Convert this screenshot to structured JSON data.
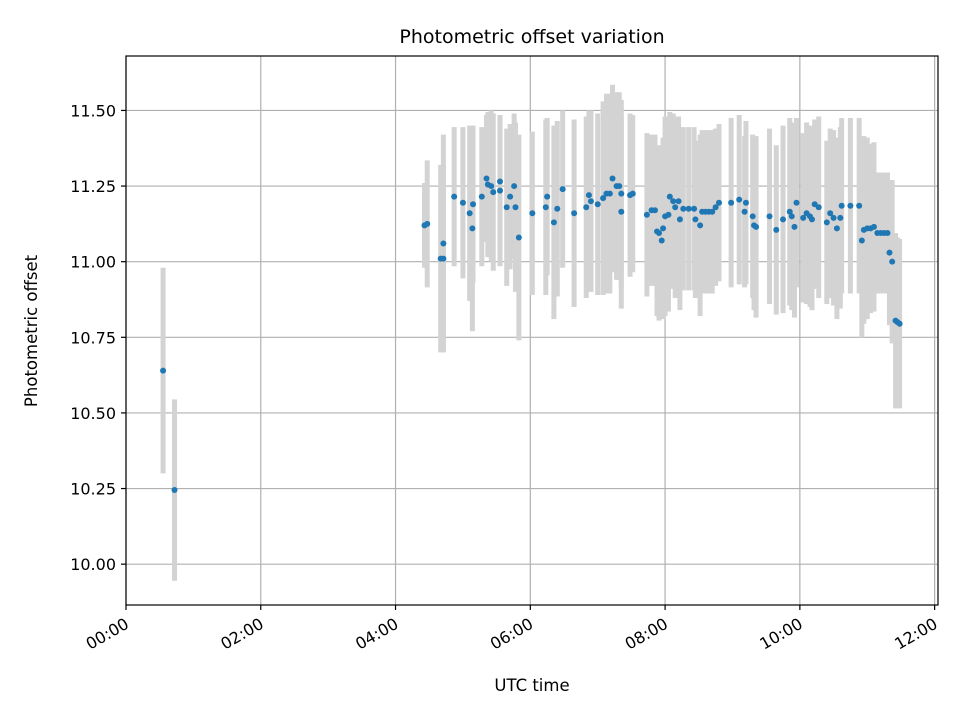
{
  "chart_data": {
    "type": "scatter",
    "title": "Photometric offset variation",
    "xlabel": "UTC time",
    "ylabel": "Photometric offset",
    "x_unit": "hours",
    "xlim": [
      0.0,
      12.05
    ],
    "ylim": [
      9.865,
      11.68
    ],
    "x_ticks": [
      {
        "value": 0,
        "label": "00:00"
      },
      {
        "value": 2,
        "label": "02:00"
      },
      {
        "value": 4,
        "label": "04:00"
      },
      {
        "value": 6,
        "label": "06:00"
      },
      {
        "value": 8,
        "label": "08:00"
      },
      {
        "value": 10,
        "label": "10:00"
      },
      {
        "value": 12,
        "label": "12:00"
      }
    ],
    "y_ticks": [
      {
        "value": 10.0,
        "label": "10.00"
      },
      {
        "value": 10.25,
        "label": "10.25"
      },
      {
        "value": 10.5,
        "label": "10.50"
      },
      {
        "value": 10.75,
        "label": "10.75"
      },
      {
        "value": 11.0,
        "label": "11.00"
      },
      {
        "value": 11.25,
        "label": "11.25"
      },
      {
        "value": 11.5,
        "label": "11.50"
      }
    ],
    "grid": true,
    "colors": {
      "points": "#1f77b4",
      "errorbars": "#d3d3d3",
      "grid": "#b0b0b0"
    },
    "series": [
      {
        "points": [
          [
            0.55,
            10.64,
            0.34
          ],
          [
            0.72,
            10.245,
            0.3
          ],
          [
            4.43,
            11.12,
            0.14
          ],
          [
            4.47,
            11.125,
            0.21
          ],
          [
            4.67,
            11.01,
            0.31
          ],
          [
            4.71,
            11.01,
            0.31
          ],
          [
            4.71,
            11.06,
            0.36
          ],
          [
            4.87,
            11.215,
            0.23
          ],
          [
            5.0,
            11.195,
            0.25
          ],
          [
            5.1,
            11.16,
            0.29
          ],
          [
            5.14,
            11.11,
            0.34
          ],
          [
            5.15,
            11.19,
            0.26
          ],
          [
            5.28,
            11.215,
            0.23
          ],
          [
            5.35,
            11.275,
            0.21
          ],
          [
            5.37,
            11.255,
            0.24
          ],
          [
            5.42,
            11.25,
            0.25
          ],
          [
            5.45,
            11.23,
            0.26
          ],
          [
            5.55,
            11.265,
            0.22
          ],
          [
            5.55,
            11.235,
            0.25
          ],
          [
            5.65,
            11.18,
            0.26
          ],
          [
            5.7,
            11.215,
            0.24
          ],
          [
            5.76,
            11.25,
            0.24
          ],
          [
            5.78,
            11.18,
            0.28
          ],
          [
            5.83,
            11.08,
            0.34
          ],
          [
            6.03,
            11.16,
            0.27
          ],
          [
            6.23,
            11.18,
            0.29
          ],
          [
            6.25,
            11.215,
            0.26
          ],
          [
            6.35,
            11.13,
            0.32
          ],
          [
            6.4,
            11.175,
            0.29
          ],
          [
            6.48,
            11.24,
            0.26
          ],
          [
            6.65,
            11.16,
            0.31
          ],
          [
            6.83,
            11.18,
            0.3
          ],
          [
            6.87,
            11.22,
            0.28
          ],
          [
            6.9,
            11.2,
            0.3
          ],
          [
            7.0,
            11.19,
            0.3
          ],
          [
            7.08,
            11.21,
            0.32
          ],
          [
            7.13,
            11.225,
            0.33
          ],
          [
            7.18,
            11.225,
            0.33
          ],
          [
            7.22,
            11.275,
            0.31
          ],
          [
            7.28,
            11.25,
            0.31
          ],
          [
            7.32,
            11.25,
            0.31
          ],
          [
            7.35,
            11.225,
            0.31
          ],
          [
            7.35,
            11.165,
            0.32
          ],
          [
            7.48,
            11.22,
            0.27
          ],
          [
            7.52,
            11.225,
            0.26
          ],
          [
            7.73,
            11.155,
            0.27
          ],
          [
            7.8,
            11.17,
            0.25
          ],
          [
            7.85,
            11.17,
            0.25
          ],
          [
            7.88,
            11.1,
            0.28
          ],
          [
            7.91,
            11.095,
            0.29
          ],
          [
            7.95,
            11.07,
            0.25
          ],
          [
            7.97,
            11.11,
            0.3
          ],
          [
            8.0,
            11.15,
            0.33
          ],
          [
            8.05,
            11.155,
            0.32
          ],
          [
            8.07,
            11.215,
            0.28
          ],
          [
            8.12,
            11.2,
            0.29
          ],
          [
            8.15,
            11.18,
            0.3
          ],
          [
            8.2,
            11.2,
            0.28
          ],
          [
            8.22,
            11.14,
            0.3
          ],
          [
            8.27,
            11.175,
            0.27
          ],
          [
            8.35,
            11.175,
            0.27
          ],
          [
            8.43,
            11.175,
            0.27
          ],
          [
            8.45,
            11.14,
            0.26
          ],
          [
            8.52,
            11.12,
            0.3
          ],
          [
            8.55,
            11.165,
            0.27
          ],
          [
            8.6,
            11.165,
            0.27
          ],
          [
            8.65,
            11.165,
            0.27
          ],
          [
            8.7,
            11.165,
            0.27
          ],
          [
            8.75,
            11.18,
            0.26
          ],
          [
            8.8,
            11.195,
            0.26
          ],
          [
            8.98,
            11.195,
            0.28
          ],
          [
            9.1,
            11.205,
            0.28
          ],
          [
            9.18,
            11.165,
            0.25
          ],
          [
            9.2,
            11.195,
            0.27
          ],
          [
            9.3,
            11.15,
            0.27
          ],
          [
            9.32,
            11.12,
            0.28
          ],
          [
            9.35,
            11.115,
            0.3
          ],
          [
            9.55,
            11.15,
            0.29
          ],
          [
            9.65,
            11.105,
            0.28
          ],
          [
            9.75,
            11.14,
            0.31
          ],
          [
            9.85,
            11.165,
            0.31
          ],
          [
            9.88,
            11.15,
            0.31
          ],
          [
            9.92,
            11.115,
            0.3
          ],
          [
            9.95,
            11.195,
            0.28
          ],
          [
            10.05,
            11.145,
            0.28
          ],
          [
            10.1,
            11.16,
            0.3
          ],
          [
            10.15,
            11.15,
            0.3
          ],
          [
            10.18,
            11.14,
            0.3
          ],
          [
            10.22,
            11.19,
            0.28
          ],
          [
            10.28,
            11.18,
            0.3
          ],
          [
            10.4,
            11.13,
            0.27
          ],
          [
            10.45,
            11.16,
            0.28
          ],
          [
            10.5,
            11.145,
            0.29
          ],
          [
            10.55,
            11.11,
            0.3
          ],
          [
            10.6,
            11.145,
            0.3
          ],
          [
            10.62,
            11.185,
            0.29
          ],
          [
            10.75,
            11.185,
            0.29
          ],
          [
            10.88,
            11.185,
            0.29
          ],
          [
            10.92,
            11.07,
            0.32
          ],
          [
            10.95,
            11.105,
            0.31
          ],
          [
            11.0,
            11.11,
            0.3
          ],
          [
            11.05,
            11.11,
            0.28
          ],
          [
            11.1,
            11.115,
            0.28
          ],
          [
            11.15,
            11.095,
            0.2
          ],
          [
            11.2,
            11.095,
            0.2
          ],
          [
            11.25,
            11.095,
            0.2
          ],
          [
            11.3,
            11.095,
            0.2
          ],
          [
            11.33,
            11.03,
            0.24
          ],
          [
            11.37,
            11.0,
            0.27
          ],
          [
            11.42,
            10.805,
            0.29
          ],
          [
            11.45,
            10.8,
            0.28
          ],
          [
            11.48,
            10.795,
            0.28
          ]
        ]
      }
    ]
  }
}
